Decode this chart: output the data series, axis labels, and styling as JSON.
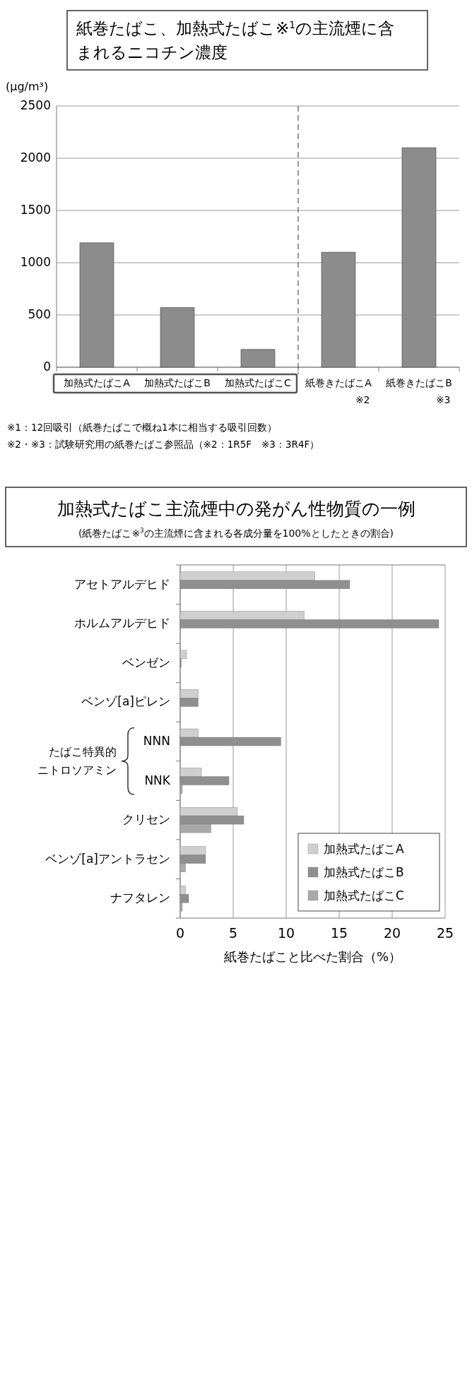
{
  "chart_data": [
    {
      "type": "bar",
      "title": "紙巻たばこ、加熱式たばこ※$^{1}$の主流煙に含まれるニコチン濃度",
      "ylabel": "(μg/m³)",
      "categories": [
        "加熱式たばこA",
        "加熱式たばこB",
        "加熱式たばこC",
        "紙巻きたばこA ※2",
        "紙巻きたばこB ※3"
      ],
      "values": [
        1190,
        570,
        170,
        1100,
        2100
      ],
      "color": "#8c8c8c",
      "ylim": [
        0,
        2500
      ],
      "yticks": [
        0,
        500,
        1000,
        1500,
        2000,
        2500
      ],
      "grid": "y",
      "annotations": [
        "※1：12回吸引（紙巻たばこで概ね1本に相当する吸引回数）",
        "※2・※3：試験研究用の紙巻たばこ参照品（※2：1R5F　※3：3R4F）"
      ]
    },
    {
      "type": "bar",
      "orientation": "horizontal",
      "title": "加熱式たばこ主流煙中の発がん性物質の一例",
      "subtitle": "(紙巻たばこ※$^{3}$の主流煙に含まれる各成分量を100%としたときの割合)",
      "xlabel": "紙巻たばこと比べた割合（%）",
      "categories": [
        "アセトアルデヒド",
        "ホルムアルデヒド",
        "ベンゼン",
        "ベンゾ[a]ピレン",
        "NNN",
        "NNK",
        "クリセン",
        "ベンゾ[a]アントラセン",
        "ナフタレン"
      ],
      "series": [
        {
          "name": "加熱式たばこA",
          "color": "#cfcfcf",
          "values": [
            12.7,
            11.7,
            0.6,
            1.7,
            1.7,
            2.0,
            5.4,
            2.4,
            0.5
          ]
        },
        {
          "name": "加熱式たばこB",
          "color": "#8f8f8f",
          "values": [
            16.0,
            24.4,
            0.1,
            1.7,
            9.5,
            4.6,
            6.0,
            2.4,
            0.8
          ]
        },
        {
          "name": "加熱式たばこC",
          "color": "#a9a9a9",
          "values": [
            null,
            null,
            null,
            null,
            null,
            0.2,
            2.9,
            0.5,
            0.2
          ]
        }
      ],
      "xlim": [
        0,
        25
      ],
      "xticks": [
        0,
        5,
        10,
        15,
        20,
        25
      ],
      "grid": "x",
      "legend": "bottom right",
      "annotations": [
        {
          "text": "たばこ特異的ニトロソアミン"
        }
      ]
    }
  ]
}
